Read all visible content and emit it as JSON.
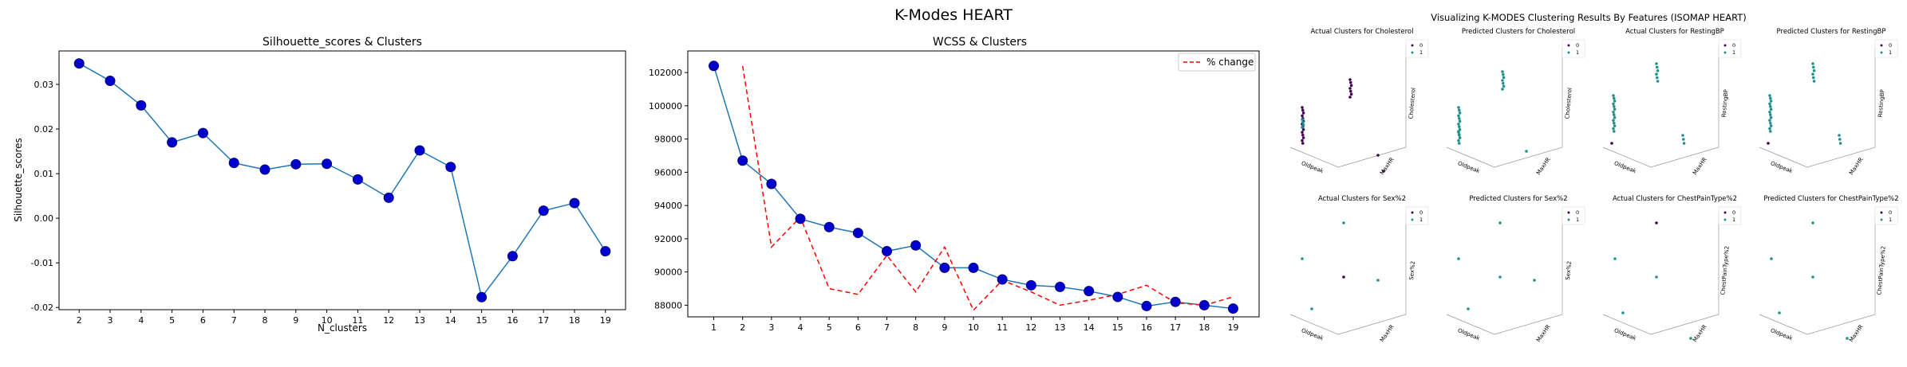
{
  "figure": {
    "suptitle": "K-Modes HEART"
  },
  "colors": {
    "line": "#1f77b4",
    "marker_face": "#0000cd",
    "marker_edge": "#000080",
    "pct": "#ff0000",
    "cluster0": "#440154",
    "cluster1": "#21918c",
    "cluster_mid": "#1f6f8b"
  },
  "chart_data": [
    {
      "type": "line",
      "title": "Silhouette_scores & Clusters",
      "xlabel": "N_clusters",
      "ylabel": "Silhouette_scores",
      "x": [
        2,
        3,
        4,
        5,
        6,
        7,
        8,
        9,
        10,
        11,
        12,
        13,
        14,
        15,
        16,
        17,
        18,
        19
      ],
      "y": [
        0.0347,
        0.0308,
        0.0253,
        0.017,
        0.0191,
        0.0124,
        0.0109,
        0.0121,
        0.0122,
        0.0087,
        0.0046,
        0.0152,
        0.0115,
        -0.0177,
        -0.0085,
        0.0017,
        0.0034,
        -0.0074
      ],
      "ylim": [
        -0.0205,
        0.0375
      ],
      "yticks": [
        "-0.02",
        "-0.01",
        "0.00",
        "0.01",
        "0.02",
        "0.03"
      ],
      "ytick_values": [
        -0.02,
        -0.01,
        0,
        0.01,
        0.02,
        0.03
      ],
      "grid": false
    },
    {
      "type": "line",
      "title": "WCSS & Clusters",
      "xlabel": "",
      "ylabel": "",
      "x": [
        1,
        2,
        3,
        4,
        5,
        6,
        7,
        8,
        9,
        10,
        11,
        12,
        13,
        14,
        15,
        16,
        17,
        18,
        19
      ],
      "y": [
        102400,
        96700,
        95300,
        93200,
        92700,
        92350,
        91250,
        91600,
        90250,
        90250,
        89550,
        89200,
        89100,
        88850,
        88500,
        87950,
        88200,
        88000,
        87800
      ],
      "ylim": [
        87300,
        103300
      ],
      "yticks": [
        "88000",
        "90000",
        "92000",
        "94000",
        "96000",
        "98000",
        "100000",
        "102000"
      ],
      "ytick_values": [
        88000,
        90000,
        92000,
        94000,
        96000,
        98000,
        100000,
        102000
      ],
      "series": [
        {
          "name": "% change",
          "x": [
            2,
            3,
            4,
            5,
            6,
            7,
            8,
            9,
            10,
            11,
            12,
            13,
            14,
            15,
            16,
            17,
            18,
            19
          ],
          "y": [
            102400,
            91500,
            93300,
            89000,
            88650,
            91000,
            88800,
            91500,
            87700,
            89500,
            88800,
            88000,
            88300,
            88650,
            89200,
            88150,
            88000,
            88500
          ]
        }
      ],
      "legend": "top-right",
      "grid": false
    },
    {
      "type": "scatter",
      "title": "Visualizing K-MODES Clustering Results By Features (ISOMAP HEART)",
      "panels": [
        {
          "title": "Actual Clusters for Cholesterol",
          "xlabel": "Oldpeak",
          "ylabel": "MaxHR",
          "zlabel": "Cholesterol",
          "legend": [
            "0",
            "1"
          ]
        },
        {
          "title": "Predicted Clusters for Cholesterol",
          "xlabel": "Oldpeak",
          "ylabel": "MaxHR",
          "zlabel": "Cholesterol",
          "legend": [
            "0",
            "1"
          ]
        },
        {
          "title": "Actual Clusters for RestingBP",
          "xlabel": "Oldpeak",
          "ylabel": "MaxHR",
          "zlabel": "RestingBP",
          "legend": [
            "0",
            "1"
          ]
        },
        {
          "title": "Predicted Clusters for RestingBP",
          "xlabel": "Oldpeak",
          "ylabel": "MaxHR",
          "zlabel": "RestingBP",
          "legend": [
            "0",
            "1"
          ]
        },
        {
          "title": "Actual Clusters for Sex%2",
          "xlabel": "Oldpeak",
          "ylabel": "MaxHR",
          "zlabel": "Sex%2",
          "legend": [
            "0",
            "1"
          ]
        },
        {
          "title": "Predicted Clusters for Sex%2",
          "xlabel": "Oldpeak",
          "ylabel": "MaxHR",
          "zlabel": "Sex%2",
          "legend": [
            "0",
            "1"
          ]
        },
        {
          "title": "Actual Clusters for ChestPainType%2",
          "xlabel": "Oldpeak",
          "ylabel": "MaxHR",
          "zlabel": "ChestPainType%2",
          "legend": [
            "0",
            "1"
          ]
        },
        {
          "title": "Predicted Clusters for ChestPainType%2",
          "xlabel": "Oldpeak",
          "ylabel": "MaxHR",
          "zlabel": "ChestPainType%2",
          "legend": [
            "0",
            "1"
          ]
        }
      ]
    }
  ]
}
